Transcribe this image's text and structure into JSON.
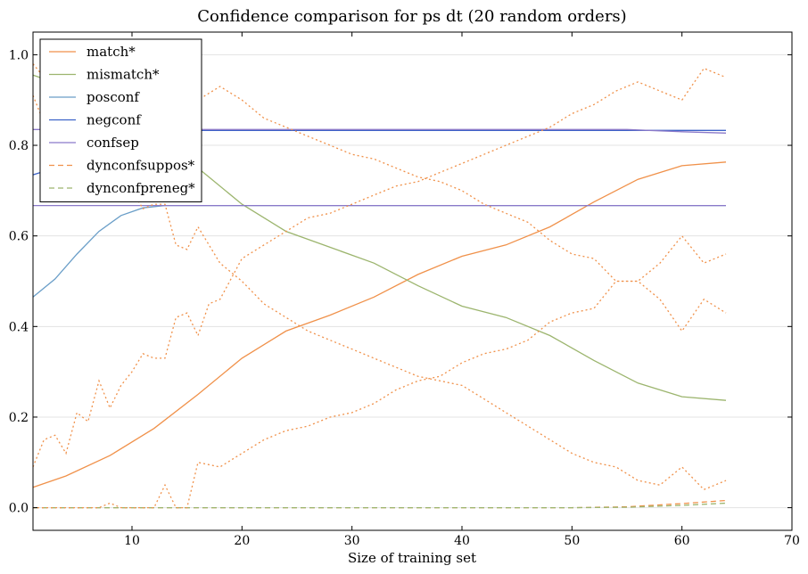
{
  "chart_data": {
    "type": "line",
    "title": "Confidence comparison for ps dt (20 random orders)",
    "xlabel": "Size of training set",
    "ylabel": "",
    "xlim": [
      1,
      70
    ],
    "ylim": [
      -0.05,
      1.05
    ],
    "xticks": [
      10,
      20,
      30,
      40,
      50,
      60,
      70
    ],
    "yticks": [
      0.0,
      0.2,
      0.4,
      0.6,
      0.8,
      1.0
    ],
    "yticklabels": [
      "0.0",
      "0.2",
      "0.4",
      "0.6",
      "0.8",
      "1.0"
    ],
    "grid": "horizontal",
    "legend_position": "top-left",
    "series": [
      {
        "name": "match*",
        "color": "#f0914a",
        "style": "solid",
        "x": [
          1,
          4,
          8,
          12,
          16,
          20,
          24,
          28,
          32,
          36,
          40,
          44,
          48,
          52,
          56,
          60,
          64
        ],
        "y": [
          0.045,
          0.07,
          0.115,
          0.175,
          0.25,
          0.33,
          0.39,
          0.425,
          0.465,
          0.515,
          0.555,
          0.58,
          0.62,
          0.675,
          0.725,
          0.755,
          0.763
        ]
      },
      {
        "name": "mismatch*",
        "color": "#9cb56e",
        "style": "solid",
        "x": [
          1,
          4,
          8,
          12,
          16,
          20,
          24,
          28,
          32,
          36,
          40,
          44,
          48,
          52,
          56,
          60,
          64
        ],
        "y": [
          0.955,
          0.93,
          0.885,
          0.82,
          0.75,
          0.67,
          0.61,
          0.575,
          0.54,
          0.49,
          0.445,
          0.42,
          0.38,
          0.325,
          0.275,
          0.245,
          0.237
        ]
      },
      {
        "name": "posconf",
        "color": "#6a9ec8",
        "style": "solid",
        "x": [
          1,
          3,
          5,
          7,
          9,
          11,
          13,
          15,
          20,
          30,
          40,
          50,
          60,
          64
        ],
        "y": [
          0.465,
          0.505,
          0.56,
          0.61,
          0.645,
          0.662,
          0.667,
          0.667,
          0.667,
          0.667,
          0.667,
          0.667,
          0.667,
          0.667
        ]
      },
      {
        "name": "negconf",
        "color": "#3d63c8",
        "style": "solid",
        "x": [
          1,
          3,
          5,
          7,
          9,
          11,
          13,
          15,
          20,
          30,
          40,
          50,
          60,
          64
        ],
        "y": [
          0.735,
          0.75,
          0.775,
          0.8,
          0.815,
          0.825,
          0.83,
          0.833,
          0.833,
          0.833,
          0.833,
          0.833,
          0.833,
          0.833
        ]
      },
      {
        "name": "confsep",
        "color": "#8b79c9",
        "style": "solid",
        "x": [
          1,
          10,
          20,
          30,
          40,
          50,
          56,
          60,
          64
        ],
        "y": [
          0.667,
          0.667,
          0.667,
          0.667,
          0.667,
          0.667,
          0.667,
          0.667,
          0.667
        ]
      },
      {
        "name": "dynconfsuppos*",
        "color": "#f0914a",
        "style": "dashed",
        "x": [
          1,
          10,
          20,
          30,
          40,
          50,
          55,
          60,
          64
        ],
        "y": [
          0.0,
          0.0,
          0.0,
          0.0,
          0.0,
          0.0,
          0.002,
          0.009,
          0.016
        ]
      },
      {
        "name": "dynconfpreneg*",
        "color": "#9cb56e",
        "style": "dashed",
        "x": [
          1,
          10,
          20,
          30,
          40,
          50,
          55,
          60,
          64
        ],
        "y": [
          0.0,
          0.0,
          0.0,
          0.0,
          0.0,
          0.0,
          0.001,
          0.005,
          0.01
        ]
      },
      {
        "name": "",
        "color": "#8b79c9",
        "style": "solid",
        "x": [
          1,
          10,
          20,
          30,
          40,
          50,
          55,
          60,
          64
        ],
        "y": [
          0.835,
          0.835,
          0.835,
          0.835,
          0.835,
          0.835,
          0.835,
          0.83,
          0.827
        ]
      },
      {
        "name": "",
        "color": "#f0914a",
        "style": "dotted",
        "x": [
          1,
          2,
          3,
          4,
          5,
          6,
          7,
          8,
          9,
          10,
          11,
          12,
          13,
          14,
          15,
          16,
          17,
          18,
          20,
          22,
          24,
          26,
          28,
          30,
          32,
          34,
          36,
          38,
          40,
          42,
          44,
          46,
          48,
          50,
          52,
          54,
          56,
          58,
          60,
          62,
          64
        ],
        "y": [
          0.09,
          0.15,
          0.16,
          0.12,
          0.21,
          0.19,
          0.28,
          0.22,
          0.27,
          0.3,
          0.34,
          0.33,
          0.33,
          0.42,
          0.43,
          0.38,
          0.45,
          0.46,
          0.55,
          0.58,
          0.61,
          0.64,
          0.65,
          0.67,
          0.69,
          0.71,
          0.72,
          0.74,
          0.76,
          0.78,
          0.8,
          0.82,
          0.84,
          0.87,
          0.89,
          0.92,
          0.94,
          0.92,
          0.9,
          0.97,
          0.95
        ]
      },
      {
        "name": "",
        "color": "#f0914a",
        "style": "dotted",
        "x": [
          1,
          2,
          3,
          4,
          5,
          6,
          7,
          8,
          9,
          10,
          11,
          12,
          13,
          14,
          15,
          16,
          18,
          20,
          22,
          24,
          26,
          28,
          30,
          32,
          34,
          36,
          38,
          40,
          42,
          44,
          46,
          48,
          50,
          52,
          54,
          56,
          58,
          60,
          62,
          64
        ],
        "y": [
          0.0,
          0.0,
          0.0,
          0.0,
          0.0,
          0.0,
          0.0,
          0.01,
          0.0,
          0.0,
          0.0,
          0.0,
          0.05,
          0.0,
          0.0,
          0.1,
          0.09,
          0.12,
          0.15,
          0.17,
          0.18,
          0.2,
          0.21,
          0.23,
          0.26,
          0.28,
          0.29,
          0.32,
          0.34,
          0.35,
          0.37,
          0.41,
          0.43,
          0.44,
          0.5,
          0.5,
          0.54,
          0.6,
          0.54,
          0.56
        ]
      },
      {
        "name": "",
        "color": "#f0914a",
        "style": "dotted",
        "x": [
          1,
          2,
          3,
          4,
          5,
          6,
          7,
          8,
          9,
          10,
          11,
          12,
          13,
          14,
          15,
          16,
          18,
          20,
          22,
          24,
          26,
          28,
          30,
          32,
          34,
          36,
          38,
          40,
          42,
          44,
          46,
          48,
          50,
          52,
          54,
          56,
          58,
          60,
          62,
          64
        ],
        "y": [
          0.91,
          0.85,
          0.84,
          0.88,
          0.79,
          0.81,
          0.72,
          0.78,
          0.73,
          0.7,
          0.66,
          0.67,
          0.67,
          0.58,
          0.57,
          0.62,
          0.54,
          0.5,
          0.45,
          0.42,
          0.39,
          0.37,
          0.35,
          0.33,
          0.31,
          0.29,
          0.28,
          0.27,
          0.24,
          0.21,
          0.18,
          0.15,
          0.12,
          0.1,
          0.09,
          0.06,
          0.05,
          0.09,
          0.04,
          0.06
        ]
      },
      {
        "name": "",
        "color": "#f0914a",
        "style": "dotted",
        "x": [
          1,
          2,
          3,
          4,
          5,
          6,
          7,
          8,
          9,
          10,
          11,
          12,
          13,
          14,
          15,
          16,
          18,
          20,
          22,
          24,
          26,
          28,
          30,
          32,
          34,
          36,
          38,
          40,
          42,
          44,
          46,
          48,
          50,
          52,
          54,
          56,
          58,
          60,
          62,
          64
        ],
        "y": [
          0.98,
          0.95,
          0.92,
          0.95,
          0.93,
          0.97,
          0.91,
          0.93,
          0.94,
          0.92,
          0.9,
          0.92,
          0.91,
          0.89,
          0.91,
          0.9,
          0.93,
          0.9,
          0.86,
          0.84,
          0.82,
          0.8,
          0.78,
          0.77,
          0.75,
          0.73,
          0.72,
          0.7,
          0.67,
          0.65,
          0.63,
          0.59,
          0.56,
          0.55,
          0.5,
          0.5,
          0.46,
          0.39,
          0.46,
          0.43
        ]
      }
    ]
  }
}
